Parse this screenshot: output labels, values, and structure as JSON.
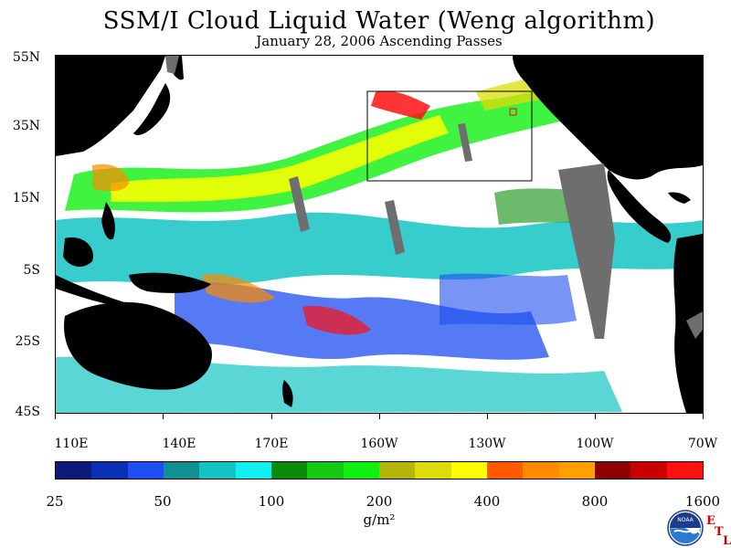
{
  "title": "SSM/I Cloud Liquid Water (Weng algorithm)",
  "subtitle": "January 28, 2006  Ascending Passes",
  "latitude_labels": [
    "55N",
    "35N",
    "15N",
    "5S",
    "25S",
    "45S"
  ],
  "longitude_labels": [
    "110E",
    "140E",
    "170E",
    "160W",
    "130W",
    "100W",
    "70W"
  ],
  "colorbar": {
    "colors": [
      "#0c1a7c",
      "#0a2fb4",
      "#1e4ef0",
      "#109090",
      "#14c4c4",
      "#10f0f0",
      "#0a8c0a",
      "#14c814",
      "#10f010",
      "#b4b40a",
      "#dcdc0a",
      "#ffff00",
      "#ff5a00",
      "#ff8a00",
      "#ffa000",
      "#8c0000",
      "#c80000",
      "#ff1010"
    ],
    "labels": [
      "25",
      "50",
      "100",
      "200",
      "400",
      "800",
      "1600"
    ]
  },
  "units": "g/m²",
  "logo": {
    "agency_text": "NOAA",
    "lab_letters": [
      "E",
      "T",
      "L"
    ]
  },
  "map": {
    "land_color": "#000000",
    "no_data_color": "#6e6e6e",
    "background_color": "#ffffff"
  }
}
